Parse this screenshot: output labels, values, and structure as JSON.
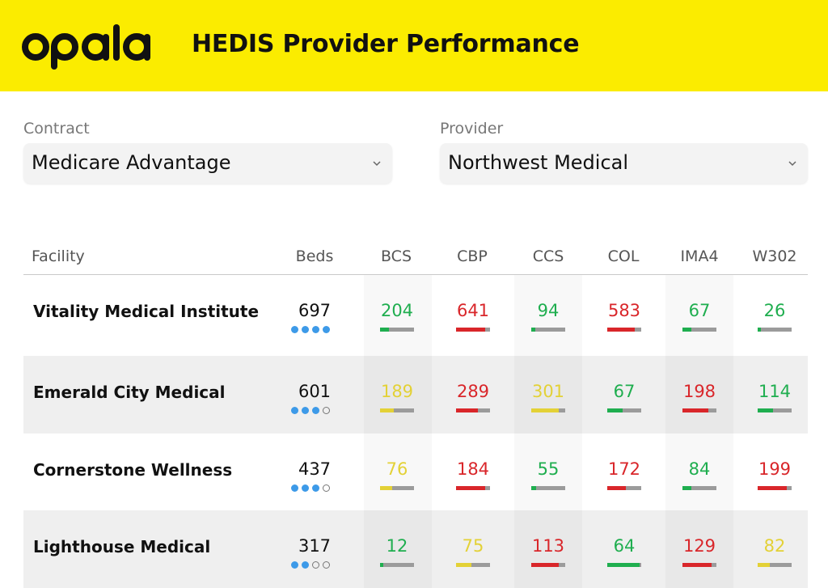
{
  "app": {
    "logo_text": "opala",
    "title": "HEDIS Provider Performance"
  },
  "filters": {
    "contract": {
      "label": "Contract",
      "value": "Medicare Advantage",
      "icon": "chevron-down-icon"
    },
    "provider": {
      "label": "Provider",
      "value": "Northwest Medical",
      "icon": "chevron-down-icon"
    }
  },
  "colors": {
    "header_bg": "#fbec00",
    "green": "#1fae4f",
    "red": "#d9262a",
    "yellow": "#e3d136",
    "dot_blue": "#3d9ae8"
  },
  "table": {
    "columns": [
      "Facility",
      "Beds",
      "BCS",
      "CBP",
      "CCS",
      "COL",
      "IMA4",
      "W302"
    ],
    "rows": [
      {
        "facility": "Vitality Medical Institute",
        "beds": "697",
        "rating": 4,
        "metrics": [
          {
            "value": "204",
            "status": "green",
            "fill": 0.25
          },
          {
            "value": "641",
            "status": "red",
            "fill": 0.85
          },
          {
            "value": "94",
            "status": "green",
            "fill": 0.12
          },
          {
            "value": "583",
            "status": "red",
            "fill": 0.8
          },
          {
            "value": "67",
            "status": "green",
            "fill": 0.25
          },
          {
            "value": "26",
            "status": "green",
            "fill": 0.1
          }
        ]
      },
      {
        "facility": "Emerald City Medical",
        "beds": "601",
        "rating": 3,
        "metrics": [
          {
            "value": "189",
            "status": "yellow",
            "fill": 0.4
          },
          {
            "value": "289",
            "status": "red",
            "fill": 0.65
          },
          {
            "value": "301",
            "status": "yellow",
            "fill": 0.8
          },
          {
            "value": "67",
            "status": "green",
            "fill": 0.45
          },
          {
            "value": "198",
            "status": "red",
            "fill": 0.75
          },
          {
            "value": "114",
            "status": "green",
            "fill": 0.45
          }
        ]
      },
      {
        "facility": "Cornerstone Wellness",
        "beds": "437",
        "rating": 3,
        "metrics": [
          {
            "value": "76",
            "status": "yellow",
            "fill": 0.35
          },
          {
            "value": "184",
            "status": "red",
            "fill": 0.85
          },
          {
            "value": "55",
            "status": "green",
            "fill": 0.15
          },
          {
            "value": "172",
            "status": "red",
            "fill": 0.55
          },
          {
            "value": "84",
            "status": "green",
            "fill": 0.25
          },
          {
            "value": "199",
            "status": "red",
            "fill": 0.85
          }
        ]
      },
      {
        "facility": "Lighthouse Medical",
        "beds": "317",
        "rating": 2,
        "metrics": [
          {
            "value": "12",
            "status": "green",
            "fill": 0.1
          },
          {
            "value": "75",
            "status": "yellow",
            "fill": 0.45
          },
          {
            "value": "113",
            "status": "red",
            "fill": 0.8
          },
          {
            "value": "64",
            "status": "green",
            "fill": 0.95
          },
          {
            "value": "129",
            "status": "red",
            "fill": 0.85
          },
          {
            "value": "82",
            "status": "yellow",
            "fill": 0.35
          }
        ]
      }
    ]
  }
}
